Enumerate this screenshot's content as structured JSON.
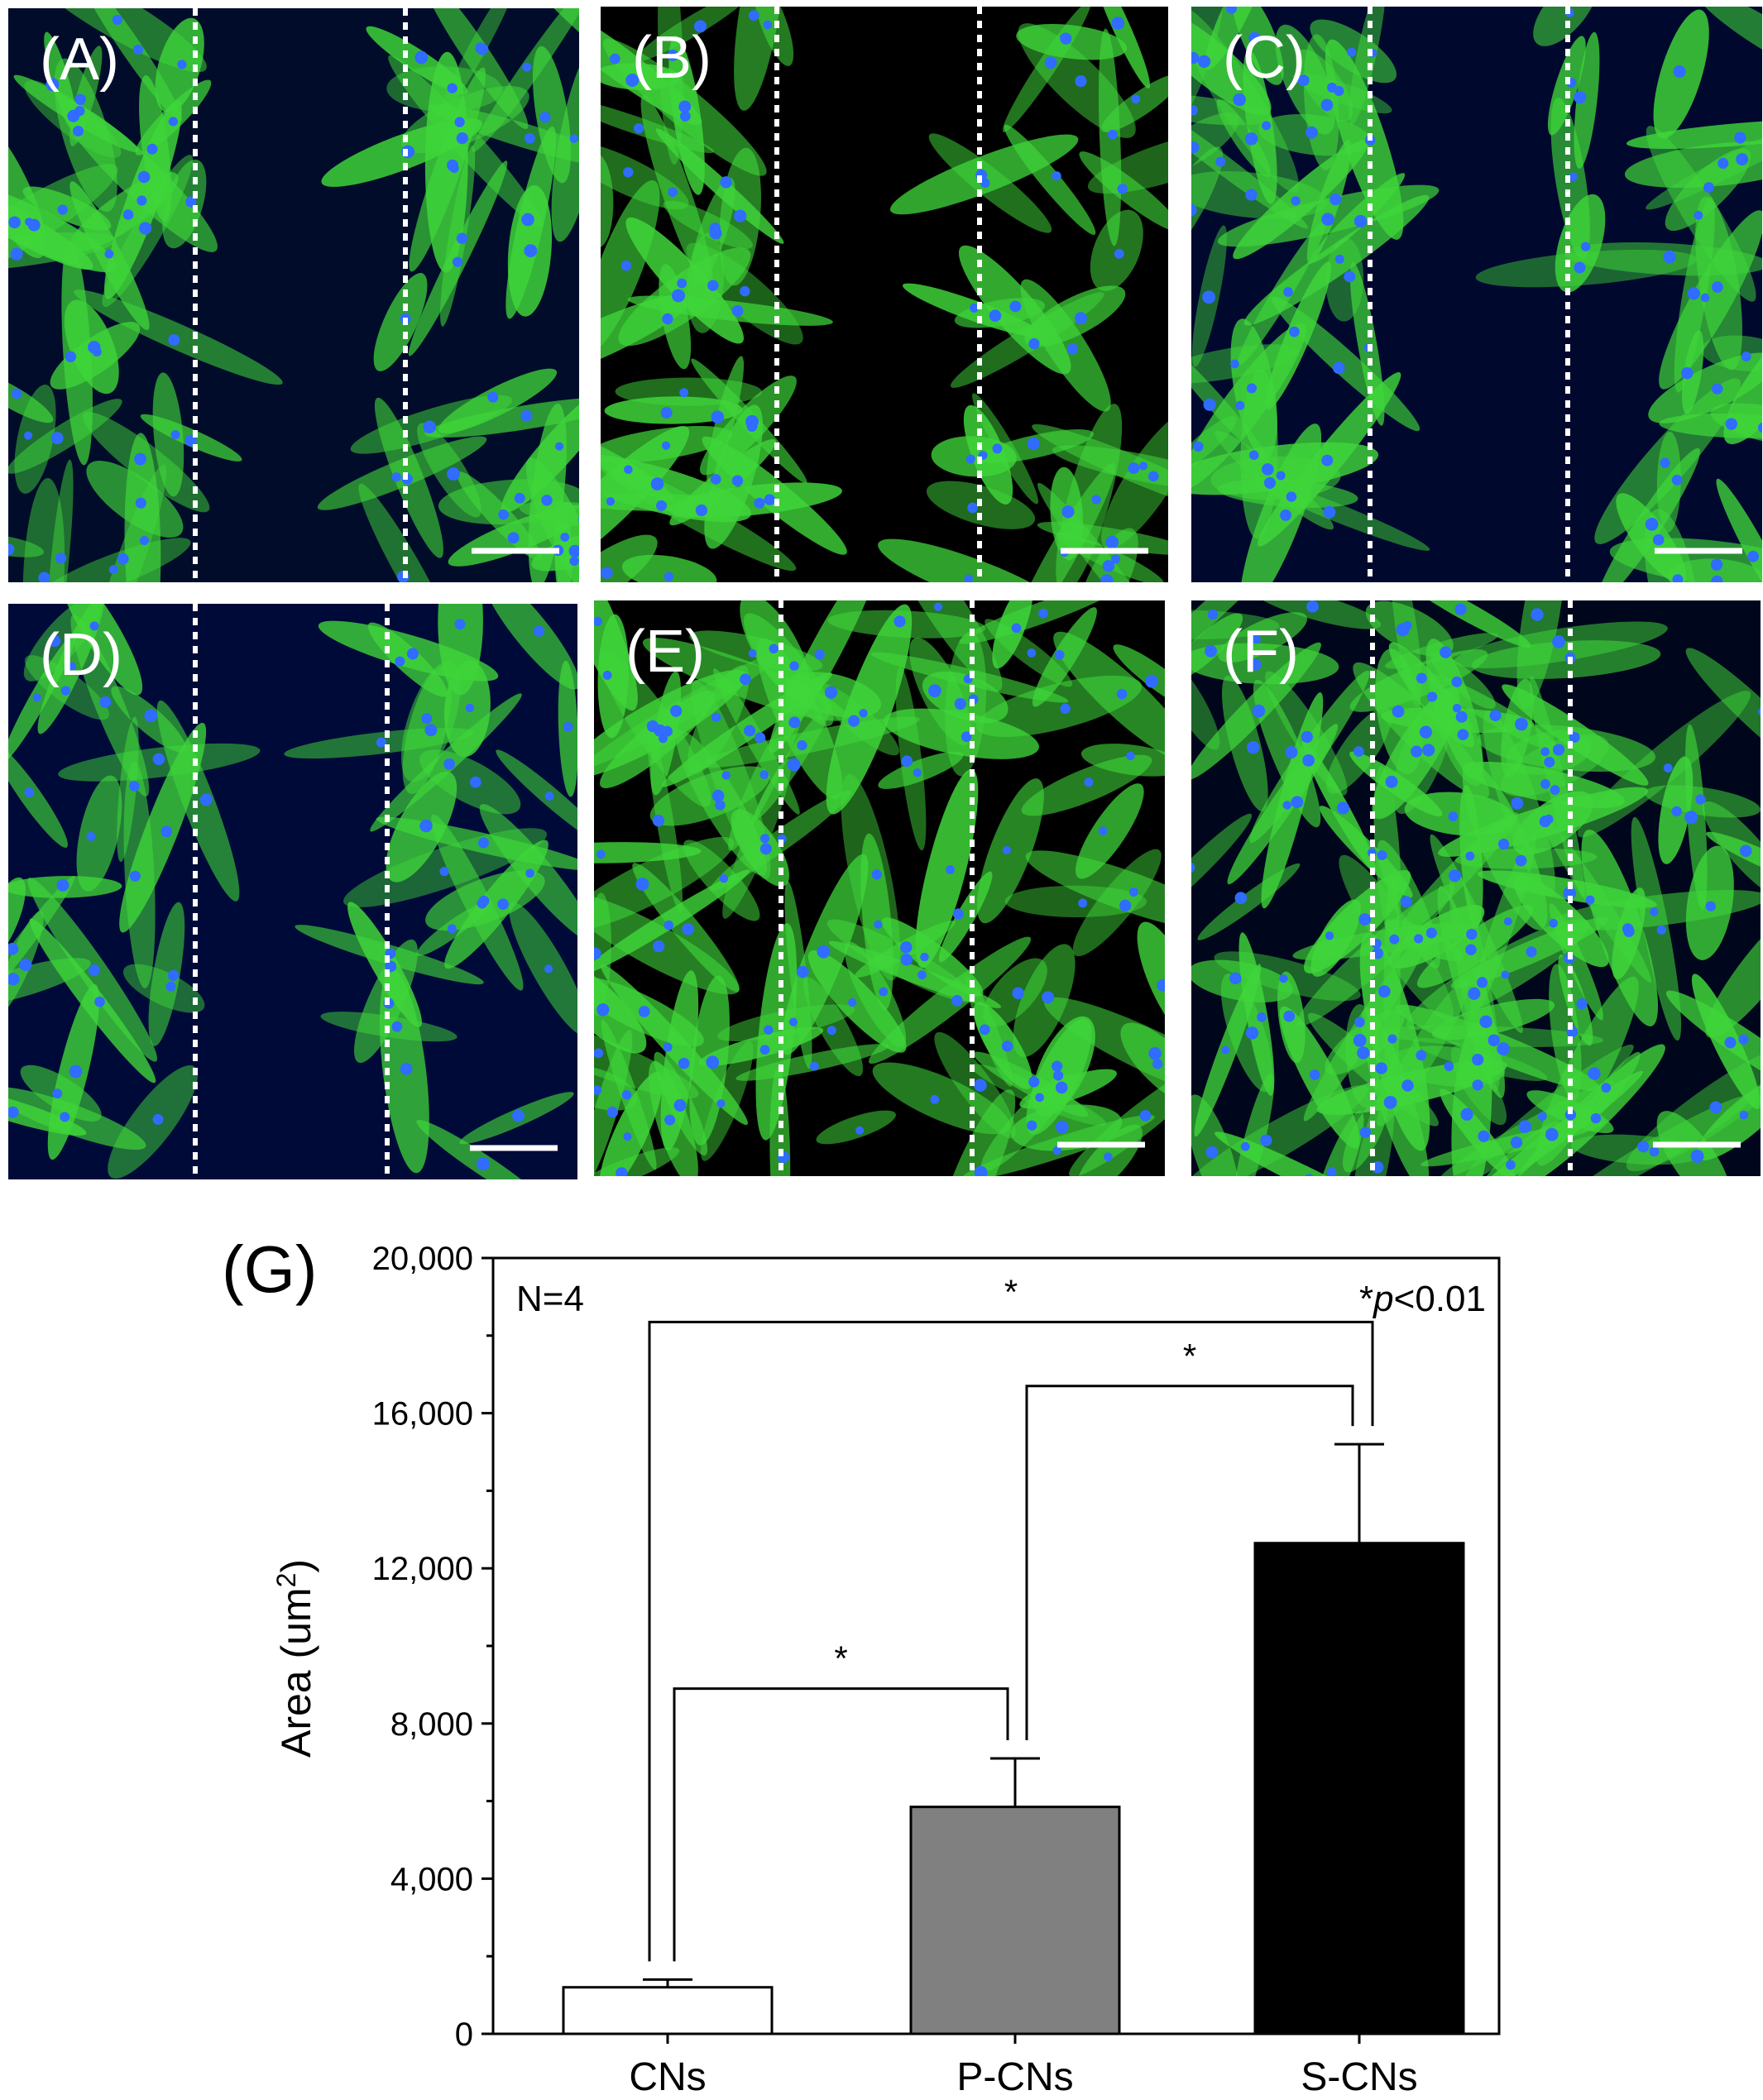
{
  "panels": [
    {
      "label": "(A)",
      "background": "#000c2a"
    },
    {
      "label": "(B)",
      "background": "#000000"
    },
    {
      "label": "(C)",
      "background": "#00082e"
    },
    {
      "label": "(D)",
      "background": "#000a38"
    },
    {
      "label": "(E)",
      "background": "#000000"
    },
    {
      "label": "(F)",
      "background": "#00061c"
    }
  ],
  "colors": {
    "actin": "#3fd63a",
    "nuclei": "#2f6cff",
    "scale_bar": "#ffffff"
  },
  "chart_data": {
    "type": "bar",
    "panel_label": "(G)",
    "categories": [
      "CNs",
      "P-CNs",
      "S-CNs"
    ],
    "values": [
      1200,
      5850,
      12650
    ],
    "errors": [
      200,
      1250,
      2550
    ],
    "bar_colors": [
      "#ffffff",
      "#808080",
      "#000000"
    ],
    "ylabel": "Area (um",
    "ylabel_sup": "2",
    "ylabel_suffix": ")",
    "xlabel": "",
    "ylim": [
      0,
      20000
    ],
    "yticks": [
      "0",
      "4,000",
      "8,000",
      "12,000",
      "16,000",
      "20,000"
    ],
    "annotations": {
      "n": "N=4",
      "sig_star": "*",
      "sig_p_italic": "p",
      "sig_p_rest": "<0.01"
    },
    "significance": [
      {
        "from": 0,
        "to": 1,
        "label": "*"
      },
      {
        "from": 1,
        "to": 2,
        "label": "*"
      },
      {
        "from": 0,
        "to": 2,
        "label": "*"
      }
    ]
  }
}
